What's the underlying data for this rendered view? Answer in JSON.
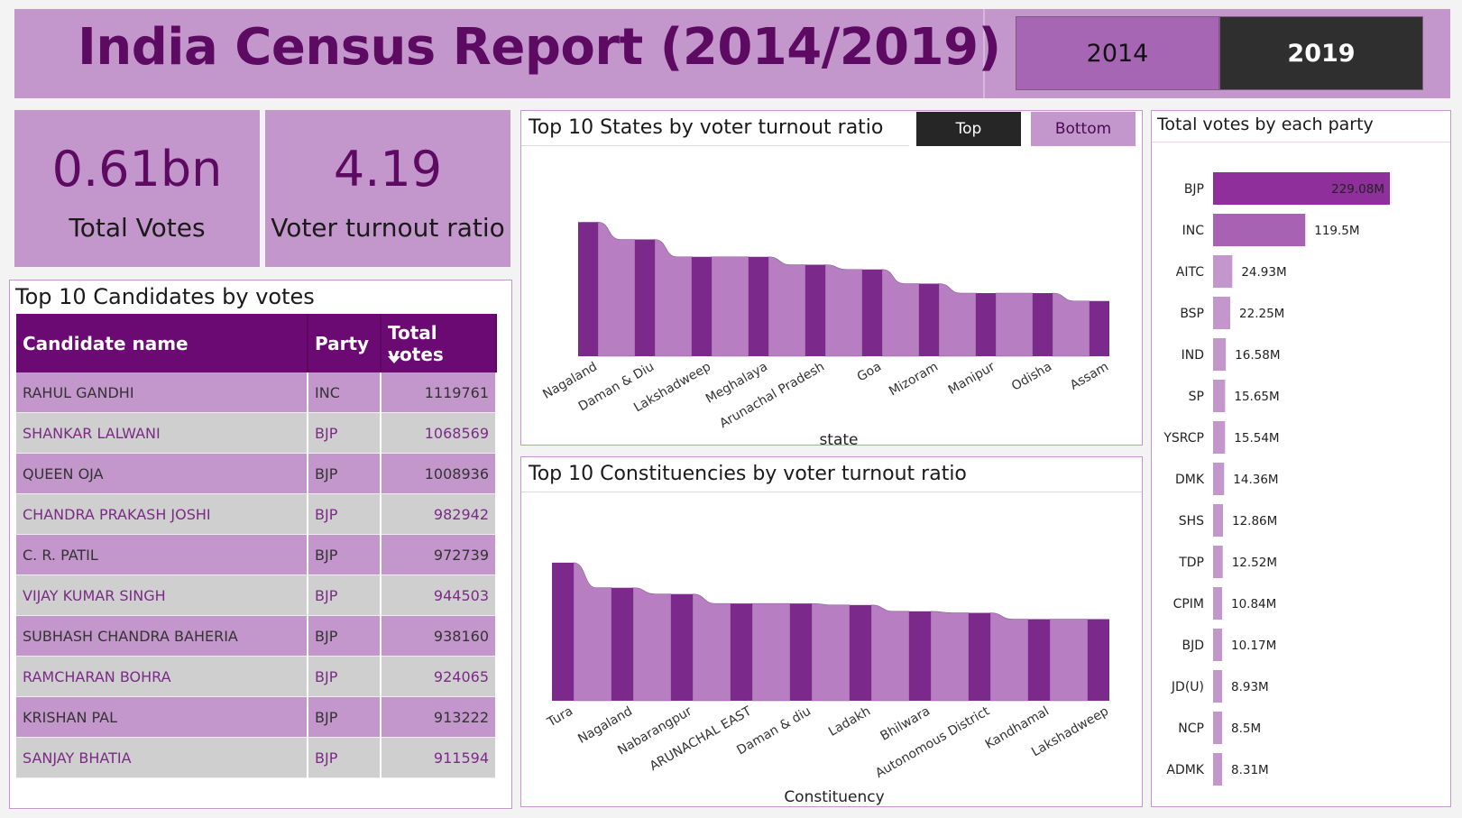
{
  "header": {
    "title": "India Census Report (2014/2019)",
    "years": [
      "2014",
      "2019"
    ],
    "selected_year": "2019"
  },
  "kpis": {
    "total_votes": {
      "value": "0.61bn",
      "label": "Total Votes"
    },
    "voter_turnout": {
      "value": "4.19",
      "label": "Voter turnout ratio"
    }
  },
  "candidates_table": {
    "title": "Top 10 Candidates by votes",
    "columns": [
      "Candidate name",
      "Party",
      "Total votes"
    ],
    "rows": [
      {
        "name": "RAHUL GANDHI",
        "party": "INC",
        "votes": "1119761"
      },
      {
        "name": "SHANKAR LALWANI",
        "party": "BJP",
        "votes": "1068569"
      },
      {
        "name": "QUEEN OJA",
        "party": "BJP",
        "votes": "1008936"
      },
      {
        "name": "CHANDRA PRAKASH JOSHI",
        "party": "BJP",
        "votes": "982942"
      },
      {
        "name": "C. R. PATIL",
        "party": "BJP",
        "votes": "972739"
      },
      {
        "name": "VIJAY KUMAR SINGH",
        "party": "BJP",
        "votes": "944503"
      },
      {
        "name": "SUBHASH CHANDRA BAHERIA",
        "party": "BJP",
        "votes": "938160"
      },
      {
        "name": "RAMCHARAN BOHRA",
        "party": "BJP",
        "votes": "924065"
      },
      {
        "name": "KRISHAN PAL",
        "party": "BJP",
        "votes": "913222"
      },
      {
        "name": "SANJAY BHATIA",
        "party": "BJP",
        "votes": "911594"
      }
    ]
  },
  "states_panel": {
    "title": "Top 10 States by voter turnout ratio",
    "toggle": [
      "Top",
      "Bottom"
    ],
    "selected_toggle": "Top"
  },
  "const_panel": {
    "title": "Top 10 Constituencies by voter turnout ratio"
  },
  "party_panel": {
    "title": "Total votes by each party"
  },
  "colors": {
    "accent_dark": "#7b2a8c",
    "accent_light": "#b77fc2",
    "header_bg": "#c497cc",
    "table_header": "#6b0a73"
  },
  "chart_data": [
    {
      "type": "bar",
      "id": "states",
      "xlabel": "state",
      "ylabel": "",
      "categories": [
        "Nagaland",
        "Daman & Diu",
        "Lakshadweep",
        "Meghalaya",
        "Arunachal Pradesh",
        "Goa",
        "Mizoram",
        "Manipur",
        "Odisha",
        "Assam"
      ],
      "values": [
        0.85,
        0.74,
        0.63,
        0.63,
        0.58,
        0.55,
        0.46,
        0.4,
        0.4,
        0.35
      ],
      "ylim": [
        0,
        1
      ],
      "grid": false
    },
    {
      "type": "bar",
      "id": "constituencies",
      "xlabel": "Constituency",
      "ylabel": "",
      "categories": [
        "Tura",
        "Nagaland",
        "Nabarangpur",
        "ARUNACHAL EAST",
        "Daman & diu",
        "Ladakh",
        "Bhilwara",
        "Autonomous District",
        "Kandhamal",
        "Lakshadweep"
      ],
      "values": [
        0.88,
        0.72,
        0.68,
        0.62,
        0.62,
        0.61,
        0.57,
        0.56,
        0.52,
        0.52
      ],
      "ylim": [
        0,
        1
      ],
      "grid": false
    },
    {
      "type": "bar",
      "id": "parties",
      "orientation": "horizontal",
      "categories": [
        "BJP",
        "INC",
        "AITC",
        "BSP",
        "IND",
        "SP",
        "YSRCP",
        "DMK",
        "SHS",
        "TDP",
        "CPIM",
        "BJD",
        "JD(U)",
        "NCP",
        "ADMK"
      ],
      "values": [
        229.08,
        119.5,
        24.93,
        22.25,
        16.58,
        15.65,
        15.54,
        14.36,
        12.86,
        12.52,
        10.84,
        10.17,
        8.93,
        8.5,
        8.31
      ],
      "labels": [
        "229.08M",
        "119.5M",
        "24.93M",
        "22.25M",
        "16.58M",
        "15.65M",
        "15.54M",
        "14.36M",
        "12.86M",
        "12.52M",
        "10.84M",
        "10.17M",
        "8.93M",
        "8.5M",
        "8.31M"
      ],
      "unit": "M",
      "grid": false
    }
  ]
}
